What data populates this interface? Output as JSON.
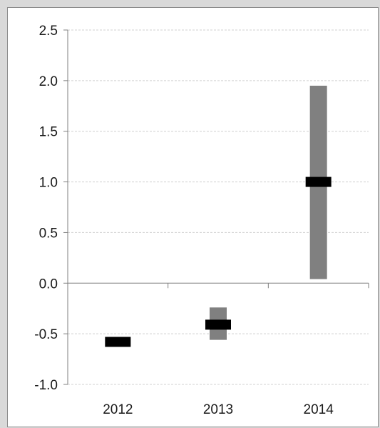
{
  "chart_data": {
    "type": "bar",
    "title": "",
    "xlabel": "",
    "ylabel": "",
    "categories": [
      "2012",
      "2013",
      "2014"
    ],
    "series": [
      {
        "kind": "range",
        "low": [
          null,
          -0.56,
          0.04
        ],
        "high": [
          null,
          -0.24,
          1.95
        ]
      },
      {
        "kind": "point",
        "values": [
          -0.58,
          -0.41,
          1.0
        ]
      }
    ],
    "ylim": [
      -1.0,
      2.5
    ],
    "yticks": [
      "2.5",
      "2.0",
      "1.5",
      "1.0",
      "0.5",
      "0.0",
      "-0.5",
      "-1.0"
    ],
    "grid": true,
    "legend": "none",
    "colors": {
      "range": "#808080",
      "point": "#000000",
      "grid": "#d0d0d0",
      "axis": "#7f7f7f"
    }
  }
}
